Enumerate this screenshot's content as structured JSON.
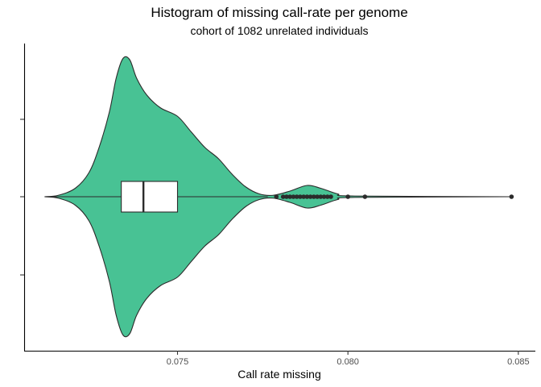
{
  "chart_data": {
    "type": "violin",
    "title": "Histogram of missing call-rate per genome",
    "subtitle": "cohort of 1082 unrelated individuals",
    "xlabel": "Call rate missing",
    "ylabel": "",
    "xlim": [
      0.0705,
      0.0855
    ],
    "xticks": [
      0.075,
      0.08,
      0.085
    ],
    "xtick_labels": [
      "0.075",
      "0.080",
      "0.085"
    ],
    "grid": false,
    "fill_color": "#48c294",
    "line_color": "#2b2b2b",
    "violin_density": [
      {
        "x": 0.0711,
        "d": 0.0
      },
      {
        "x": 0.0715,
        "d": 0.01
      },
      {
        "x": 0.072,
        "d": 0.06
      },
      {
        "x": 0.0724,
        "d": 0.17
      },
      {
        "x": 0.0727,
        "d": 0.35
      },
      {
        "x": 0.073,
        "d": 0.6
      },
      {
        "x": 0.0732,
        "d": 0.84
      },
      {
        "x": 0.0734,
        "d": 0.98
      },
      {
        "x": 0.0736,
        "d": 0.97
      },
      {
        "x": 0.0738,
        "d": 0.84
      },
      {
        "x": 0.0741,
        "d": 0.72
      },
      {
        "x": 0.0745,
        "d": 0.63
      },
      {
        "x": 0.075,
        "d": 0.57
      },
      {
        "x": 0.0754,
        "d": 0.46
      },
      {
        "x": 0.0758,
        "d": 0.35
      },
      {
        "x": 0.0762,
        "d": 0.27
      },
      {
        "x": 0.0766,
        "d": 0.16
      },
      {
        "x": 0.077,
        "d": 0.07
      },
      {
        "x": 0.0774,
        "d": 0.02
      },
      {
        "x": 0.0778,
        "d": 0.01
      },
      {
        "x": 0.0783,
        "d": 0.04
      },
      {
        "x": 0.0788,
        "d": 0.08
      },
      {
        "x": 0.0792,
        "d": 0.06
      },
      {
        "x": 0.0797,
        "d": 0.02
      },
      {
        "x": 0.0802,
        "d": 0.005
      },
      {
        "x": 0.0848,
        "d": 0.0
      }
    ],
    "boxplot": {
      "lower_whisker": 0.0711,
      "q1": 0.07335,
      "median": 0.074,
      "q3": 0.075,
      "upper_whisker": 0.07765
    },
    "outliers": [
      0.0779,
      0.0781,
      0.0782,
      0.0783,
      0.0784,
      0.0785,
      0.0786,
      0.0787,
      0.0788,
      0.0789,
      0.079,
      0.0791,
      0.0792,
      0.0793,
      0.0794,
      0.0795,
      0.08,
      0.0805,
      0.0848
    ]
  }
}
